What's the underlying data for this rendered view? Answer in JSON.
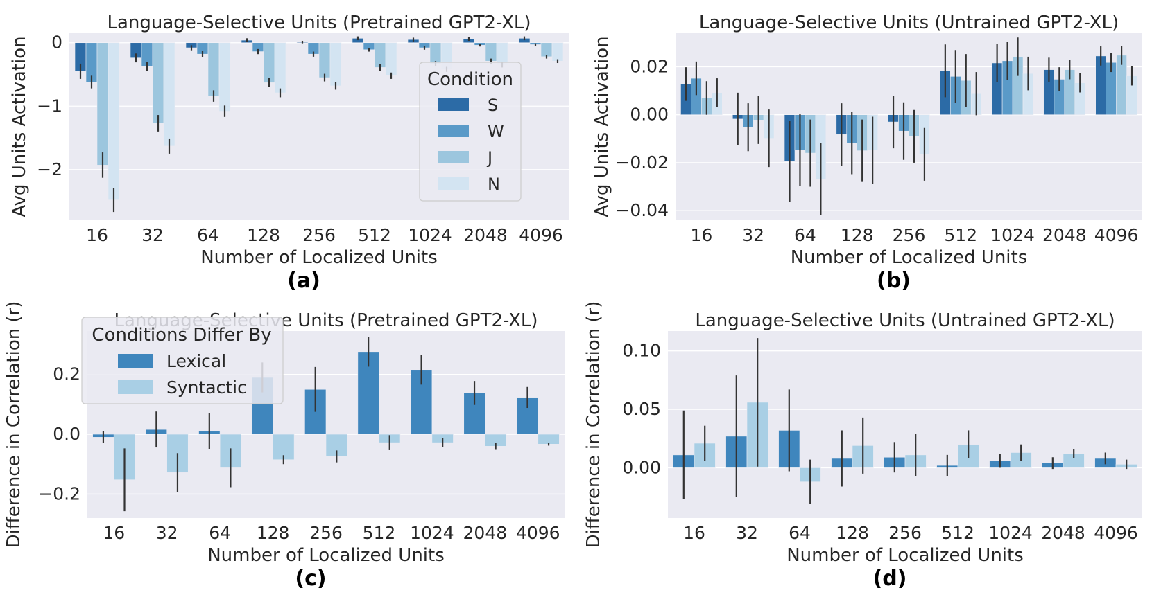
{
  "colors": {
    "plot_bg": "#eaeaf2",
    "grid": "#ffffff",
    "err": "#333333",
    "S": "#2c6ba6",
    "W": "#5a9ac8",
    "J": "#9cc6de",
    "N": "#d3e4f2",
    "Lexical": "#3f86bd",
    "Syntactic": "#a9cfe5"
  },
  "chart_data": [
    {
      "id": "a",
      "panel_label": "(a)",
      "type": "bar",
      "title": "Language-Selective Units (Pretrained GPT2-XL)",
      "xlabel": "Number of Localized Units",
      "ylabel": "Avg Units Activation",
      "categories": [
        "16",
        "32",
        "64",
        "128",
        "256",
        "512",
        "1024",
        "2048",
        "4096"
      ],
      "ylim": [
        -2.8,
        0.15
      ],
      "yticks": [
        0,
        -1,
        -2
      ],
      "ytick_labels": [
        "0",
        "−1",
        "−2"
      ],
      "grid": true,
      "legend": {
        "title": "Condition",
        "position": "right",
        "entries": [
          "S",
          "W",
          "J",
          "N"
        ]
      },
      "series": [
        {
          "name": "S",
          "values": [
            -0.45,
            -0.24,
            -0.08,
            0.04,
            0.01,
            0.07,
            0.05,
            0.06,
            0.07
          ],
          "err": [
            0.12,
            0.07,
            0.04,
            0.03,
            0.02,
            0.03,
            0.03,
            0.03,
            0.03
          ]
        },
        {
          "name": "W",
          "values": [
            -0.62,
            -0.37,
            -0.18,
            -0.14,
            -0.18,
            -0.11,
            -0.08,
            -0.04,
            -0.03
          ],
          "err": [
            0.1,
            0.07,
            0.05,
            0.04,
            0.04,
            0.03,
            0.03,
            0.02,
            0.02
          ]
        },
        {
          "name": "J",
          "values": [
            -1.93,
            -1.27,
            -0.84,
            -0.63,
            -0.55,
            -0.39,
            -0.33,
            -0.29,
            -0.22
          ],
          "err": [
            0.2,
            0.13,
            0.09,
            0.07,
            0.06,
            0.05,
            0.04,
            0.04,
            0.03
          ]
        },
        {
          "name": "N",
          "values": [
            -2.48,
            -1.63,
            -1.08,
            -0.79,
            -0.68,
            -0.52,
            -0.42,
            -0.35,
            -0.29
          ],
          "err": [
            0.19,
            0.12,
            0.09,
            0.07,
            0.06,
            0.05,
            0.04,
            0.04,
            0.03
          ]
        }
      ]
    },
    {
      "id": "b",
      "panel_label": "(b)",
      "type": "bar",
      "title": "Language-Selective Units (Untrained GPT2-XL)",
      "xlabel": "Number of Localized Units",
      "ylabel": "Avg Units Activation",
      "categories": [
        "16",
        "32",
        "64",
        "128",
        "256",
        "512",
        "1024",
        "2048",
        "4096"
      ],
      "ylim": [
        -0.044,
        0.034
      ],
      "yticks": [
        0.02,
        0.0,
        -0.02,
        -0.04
      ],
      "ytick_labels": [
        "0.02",
        "0.00",
        "−0.02",
        "−0.04"
      ],
      "grid": true,
      "series": [
        {
          "name": "S",
          "values": [
            0.0128,
            -0.0018,
            -0.0195,
            -0.0082,
            -0.003,
            0.0183,
            0.0216,
            0.0188,
            0.0245
          ],
          "err": [
            0.007,
            0.011,
            0.017,
            0.013,
            0.011,
            0.011,
            0.008,
            0.005,
            0.004
          ]
        },
        {
          "name": "W",
          "values": [
            0.0152,
            -0.0052,
            -0.0148,
            -0.0118,
            -0.0068,
            0.016,
            0.0225,
            0.0148,
            0.0218
          ],
          "err": [
            0.007,
            0.01,
            0.015,
            0.013,
            0.012,
            0.011,
            0.008,
            0.005,
            0.004
          ]
        },
        {
          "name": "J",
          "values": [
            0.007,
            -0.0022,
            -0.016,
            -0.015,
            -0.009,
            0.0143,
            0.0242,
            0.0188,
            0.0248
          ],
          "err": [
            0.007,
            0.01,
            0.014,
            0.013,
            0.011,
            0.011,
            0.008,
            0.004,
            0.004
          ]
        },
        {
          "name": "N",
          "values": [
            0.0092,
            -0.0098,
            -0.0268,
            -0.0148,
            -0.0165,
            0.0088,
            0.0172,
            0.0133,
            0.0162
          ],
          "err": [
            0.006,
            0.012,
            0.015,
            0.014,
            0.011,
            0.009,
            0.007,
            0.004,
            0.004
          ]
        }
      ]
    },
    {
      "id": "c",
      "panel_label": "(c)",
      "type": "bar",
      "title": "Language-Selective Units (Pretrained GPT2-XL)",
      "xlabel": "Number of Localized Units",
      "ylabel": "Difference in Correlation (r)",
      "categories": [
        "16",
        "32",
        "64",
        "128",
        "256",
        "512",
        "1024",
        "2048",
        "4096"
      ],
      "ylim": [
        -0.28,
        0.345
      ],
      "yticks": [
        0.2,
        0.0,
        -0.2
      ],
      "ytick_labels": [
        "0.2",
        "0.0",
        "−0.2"
      ],
      "grid": true,
      "legend": {
        "title": "Conditions Differ By",
        "position": "upper left",
        "entries": [
          "Lexical",
          "Syntactic"
        ]
      },
      "series": [
        {
          "name": "Lexical",
          "values": [
            -0.01,
            0.016,
            0.01,
            0.19,
            0.15,
            0.276,
            0.216,
            0.138,
            0.123
          ],
          "err": [
            0.02,
            0.06,
            0.06,
            0.05,
            0.075,
            0.05,
            0.05,
            0.04,
            0.035
          ]
        },
        {
          "name": "Syntactic",
          "values": [
            -0.152,
            -0.128,
            -0.112,
            -0.085,
            -0.074,
            -0.028,
            -0.028,
            -0.04,
            -0.033
          ],
          "err": [
            0.105,
            0.065,
            0.065,
            0.015,
            0.02,
            0.025,
            0.015,
            0.012,
            0.005
          ]
        }
      ]
    },
    {
      "id": "d",
      "panel_label": "(d)",
      "type": "bar",
      "title": "Language-Selective Units (Untrained GPT2-XL)",
      "xlabel": "Number of Localized Units",
      "ylabel": "Difference in Correlation (r)",
      "categories": [
        "16",
        "32",
        "64",
        "128",
        "256",
        "512",
        "1024",
        "2048",
        "4096"
      ],
      "ylim": [
        -0.043,
        0.117
      ],
      "yticks": [
        0.1,
        0.05,
        0.0
      ],
      "ytick_labels": [
        "0.10",
        "0.05",
        "0.00"
      ],
      "grid": true,
      "series": [
        {
          "name": "Lexical",
          "values": [
            0.011,
            0.027,
            0.032,
            0.008,
            0.009,
            0.002,
            0.006,
            0.004,
            0.008
          ],
          "err": [
            0.038,
            0.052,
            0.035,
            0.024,
            0.013,
            0.009,
            0.006,
            0.005,
            0.005
          ]
        },
        {
          "name": "Syntactic",
          "values": [
            0.021,
            0.056,
            -0.012,
            0.019,
            0.011,
            0.02,
            0.013,
            0.012,
            0.003
          ],
          "err": [
            0.015,
            0.055,
            0.019,
            0.024,
            0.018,
            0.012,
            0.007,
            0.004,
            0.004
          ]
        }
      ]
    }
  ]
}
